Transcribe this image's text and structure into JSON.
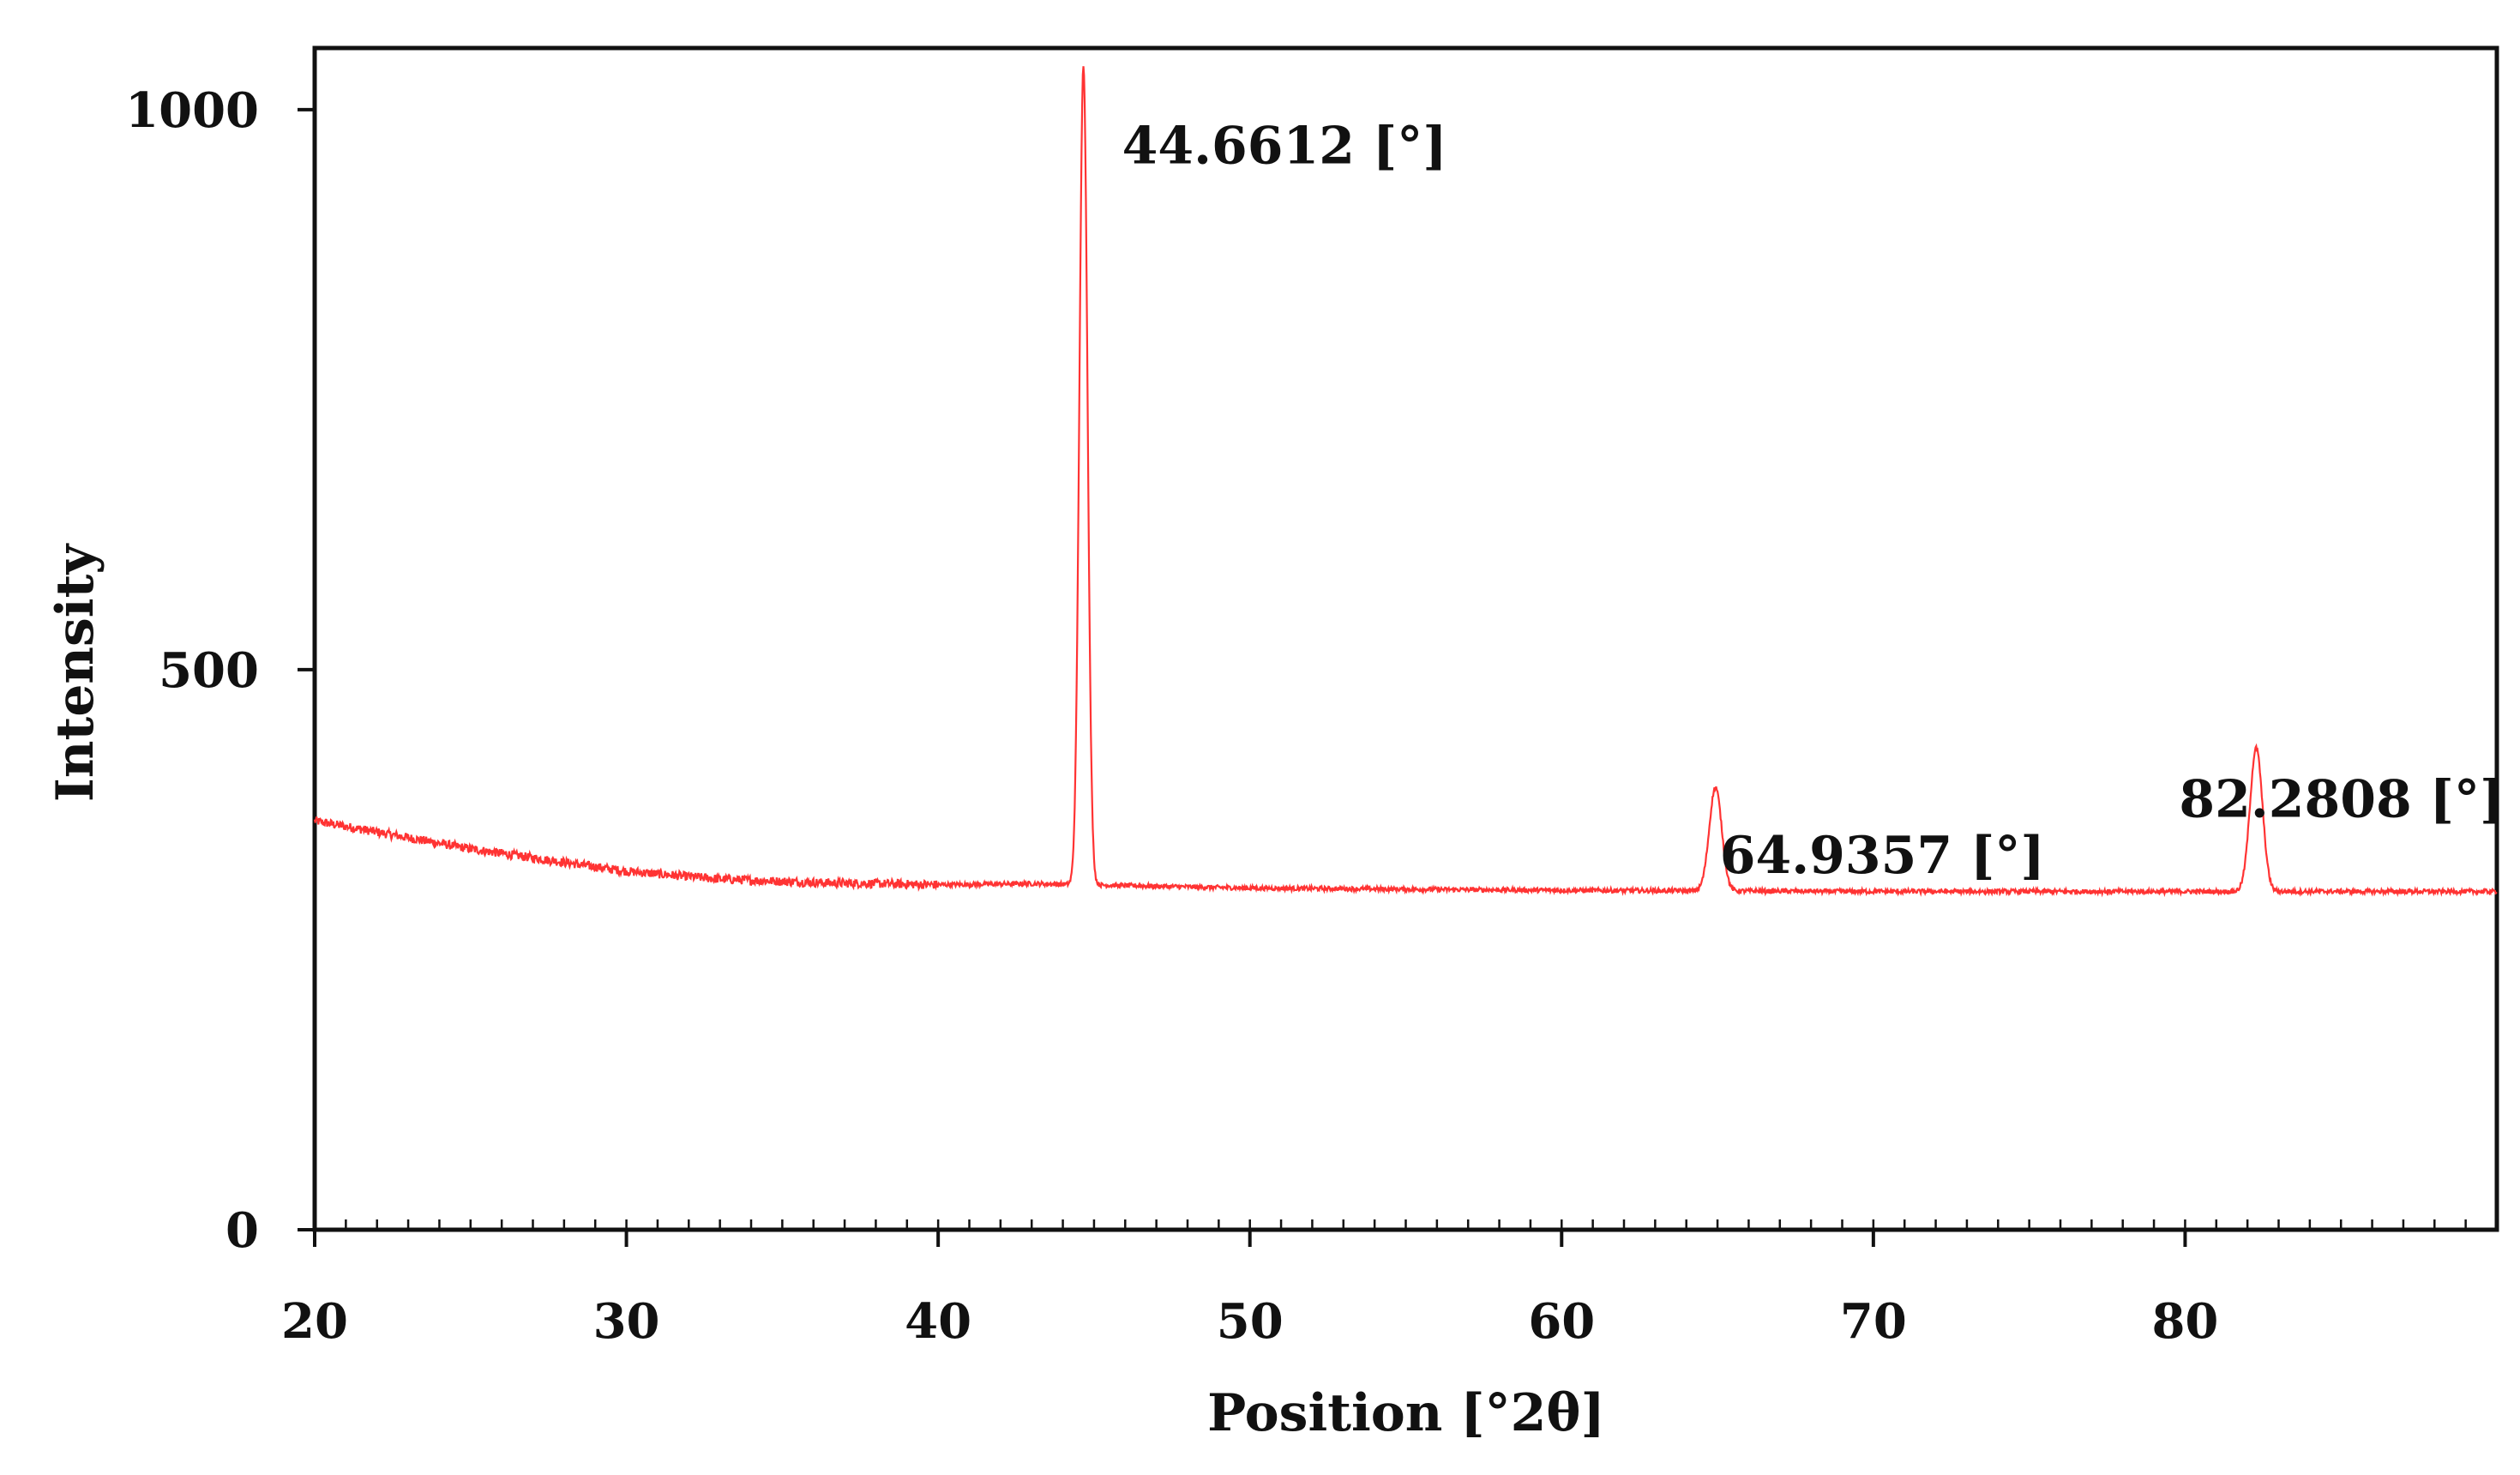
{
  "chart_data": {
    "type": "line",
    "xlabel": "Position [°2θ]",
    "ylabel": "Intensity",
    "xlim": [
      20,
      90
    ],
    "ylim": [
      0,
      1000
    ],
    "xticks": [
      20,
      30,
      40,
      50,
      60,
      70,
      80
    ],
    "yticks": [
      0,
      500,
      1000
    ],
    "grid": false,
    "line_color": "#ff3333",
    "baseline": {
      "x": [
        20,
        22,
        25,
        28,
        30,
        33,
        36,
        40,
        43,
        50,
        60,
        70,
        80,
        90
      ],
      "y": [
        365,
        355,
        340,
        328,
        320,
        313,
        310,
        308,
        309,
        305,
        303,
        302,
        302,
        302
      ]
    },
    "peaks": [
      {
        "x": 44.6612,
        "y": 1040,
        "label": "44.6612 [°]"
      },
      {
        "x": 64.9357,
        "y": 395,
        "label": "64.9357 [°]"
      },
      {
        "x": 82.2808,
        "y": 430,
        "label": "82.2808 [°]"
      }
    ]
  }
}
